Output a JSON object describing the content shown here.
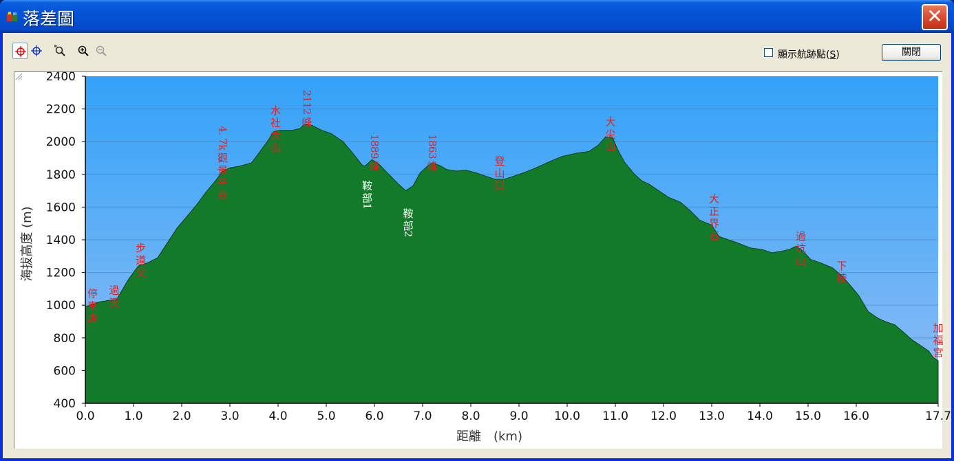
{
  "window": {
    "title": "落差圖",
    "close_symbol": "✕"
  },
  "toolbar": {
    "tools": [
      {
        "name": "crosshair-red-tool",
        "active": true
      },
      {
        "name": "crosshair-blue-tool",
        "active": false
      },
      {
        "name": "zoom-select-tool",
        "active": false
      },
      {
        "name": "zoom-in-tool",
        "active": false
      },
      {
        "name": "zoom-out-tool",
        "active": false,
        "disabled": true
      }
    ],
    "show_trackpoints_label": "顯示航跡點(",
    "show_trackpoints_hotkey": "S",
    "show_trackpoints_suffix": ")",
    "show_trackpoints_checked": false,
    "close_button_label": "關閉"
  },
  "chart_data": {
    "type": "area",
    "xlabel": "距離　(km)",
    "ylabel": "海拔高度 (m)",
    "xlim": [
      0.0,
      17.7
    ],
    "ylim": [
      400,
      2400
    ],
    "x_ticks": [
      "0.0",
      "1.0",
      "2.0",
      "3.0",
      "4.0",
      "5.0",
      "6.0",
      "7.0",
      "8.0",
      "9.0",
      "10.0",
      "11.0",
      "12.0",
      "13.0",
      "14.0",
      "15.0",
      "16.0",
      "17.7"
    ],
    "x_tick_values": [
      0,
      1,
      2,
      3,
      4,
      5,
      6,
      7,
      8,
      9,
      10,
      11,
      12,
      13,
      14,
      15,
      16,
      17.7
    ],
    "y_ticks": [
      400,
      600,
      800,
      1000,
      1200,
      1400,
      1600,
      1800,
      2000,
      2200,
      2400
    ],
    "grid": true,
    "colors": {
      "sky_top": "#33a2f8",
      "sky_bottom": "#8fbdf5",
      "fill_light": "#2eb451",
      "fill_dark": "#0e5a1e",
      "label_red": "#e02020",
      "label_white": "#ffffff"
    },
    "profile": [
      [
        0.0,
        990
      ],
      [
        0.15,
        1005
      ],
      [
        0.3,
        1020
      ],
      [
        0.5,
        1030
      ],
      [
        0.65,
        1035
      ],
      [
        0.7,
        1060
      ],
      [
        0.8,
        1110
      ],
      [
        0.9,
        1160
      ],
      [
        1.0,
        1200
      ],
      [
        1.1,
        1240
      ],
      [
        1.3,
        1260
      ],
      [
        1.5,
        1290
      ],
      [
        1.7,
        1380
      ],
      [
        1.9,
        1470
      ],
      [
        2.1,
        1540
      ],
      [
        2.3,
        1610
      ],
      [
        2.5,
        1690
      ],
      [
        2.7,
        1760
      ],
      [
        2.85,
        1820
      ],
      [
        3.0,
        1840
      ],
      [
        3.2,
        1850
      ],
      [
        3.45,
        1870
      ],
      [
        3.6,
        1930
      ],
      [
        3.8,
        2010
      ],
      [
        3.9,
        2060
      ],
      [
        4.05,
        2070
      ],
      [
        4.3,
        2070
      ],
      [
        4.45,
        2080
      ],
      [
        4.55,
        2105
      ],
      [
        4.7,
        2100
      ],
      [
        4.9,
        2070
      ],
      [
        5.1,
        2050
      ],
      [
        5.35,
        2000
      ],
      [
        5.55,
        1930
      ],
      [
        5.75,
        1855
      ],
      [
        5.8,
        1850
      ],
      [
        5.95,
        1890
      ],
      [
        6.1,
        1860
      ],
      [
        6.3,
        1800
      ],
      [
        6.5,
        1740
      ],
      [
        6.65,
        1700
      ],
      [
        6.8,
        1730
      ],
      [
        6.95,
        1810
      ],
      [
        7.1,
        1850
      ],
      [
        7.2,
        1870
      ],
      [
        7.35,
        1855
      ],
      [
        7.5,
        1830
      ],
      [
        7.7,
        1820
      ],
      [
        7.9,
        1825
      ],
      [
        8.1,
        1810
      ],
      [
        8.3,
        1790
      ],
      [
        8.5,
        1770
      ],
      [
        8.7,
        1770
      ],
      [
        8.9,
        1790
      ],
      [
        9.1,
        1810
      ],
      [
        9.35,
        1840
      ],
      [
        9.65,
        1880
      ],
      [
        9.9,
        1910
      ],
      [
        10.2,
        1930
      ],
      [
        10.45,
        1940
      ],
      [
        10.65,
        1980
      ],
      [
        10.8,
        2030
      ],
      [
        10.95,
        2020
      ],
      [
        11.05,
        1950
      ],
      [
        11.2,
        1870
      ],
      [
        11.4,
        1800
      ],
      [
        11.55,
        1760
      ],
      [
        11.7,
        1740
      ],
      [
        11.9,
        1700
      ],
      [
        12.1,
        1660
      ],
      [
        12.35,
        1630
      ],
      [
        12.55,
        1580
      ],
      [
        12.75,
        1520
      ],
      [
        13.0,
        1490
      ],
      [
        13.15,
        1420
      ],
      [
        13.35,
        1400
      ],
      [
        13.55,
        1380
      ],
      [
        13.8,
        1350
      ],
      [
        14.05,
        1340
      ],
      [
        14.25,
        1320
      ],
      [
        14.45,
        1330
      ],
      [
        14.6,
        1340
      ],
      [
        14.75,
        1360
      ],
      [
        14.9,
        1330
      ],
      [
        15.05,
        1280
      ],
      [
        15.25,
        1260
      ],
      [
        15.5,
        1230
      ],
      [
        15.7,
        1180
      ],
      [
        15.85,
        1130
      ],
      [
        16.05,
        1060
      ],
      [
        16.25,
        960
      ],
      [
        16.45,
        920
      ],
      [
        16.6,
        900
      ],
      [
        16.8,
        880
      ],
      [
        17.0,
        830
      ],
      [
        17.15,
        790
      ],
      [
        17.35,
        750
      ],
      [
        17.5,
        720
      ],
      [
        17.6,
        680
      ],
      [
        17.7,
        660
      ]
    ],
    "annotations": [
      {
        "text": "停車處",
        "x": 0.15,
        "y": 1100,
        "color": "red"
      },
      {
        "text": "過溪",
        "x": 0.6,
        "y": 1120,
        "color": "red"
      },
      {
        "text": "步道叉",
        "x": 1.15,
        "y": 1380,
        "color": "red"
      },
      {
        "text": "4.7k觀景平台",
        "x": 2.85,
        "y": 2080,
        "color": "red"
      },
      {
        "text": "水社大山",
        "x": 3.95,
        "y": 2220,
        "color": "red"
      },
      {
        "text": "2112峰",
        "x": 4.6,
        "y": 2300,
        "color": "red"
      },
      {
        "text": "1889峰",
        "x": 6.0,
        "y": 2030,
        "color": "red"
      },
      {
        "text": "1863峰",
        "x": 7.2,
        "y": 2030,
        "color": "red"
      },
      {
        "text": "登山口",
        "x": 8.6,
        "y": 1910,
        "color": "red"
      },
      {
        "text": "大尖山",
        "x": 10.9,
        "y": 2150,
        "color": "red"
      },
      {
        "text": "鞍部1",
        "x": 5.85,
        "y": 1760,
        "color": "white"
      },
      {
        "text": "鞍部2",
        "x": 6.7,
        "y": 1590,
        "color": "white"
      },
      {
        "text": "大正界石",
        "x": 13.05,
        "y": 1680,
        "color": "red"
      },
      {
        "text": "過坑山",
        "x": 14.85,
        "y": 1450,
        "color": "red"
      },
      {
        "text": "下棱",
        "x": 15.7,
        "y": 1270,
        "color": "red"
      },
      {
        "text": "加福宮",
        "x": 17.7,
        "y": 890,
        "color": "red"
      }
    ]
  }
}
